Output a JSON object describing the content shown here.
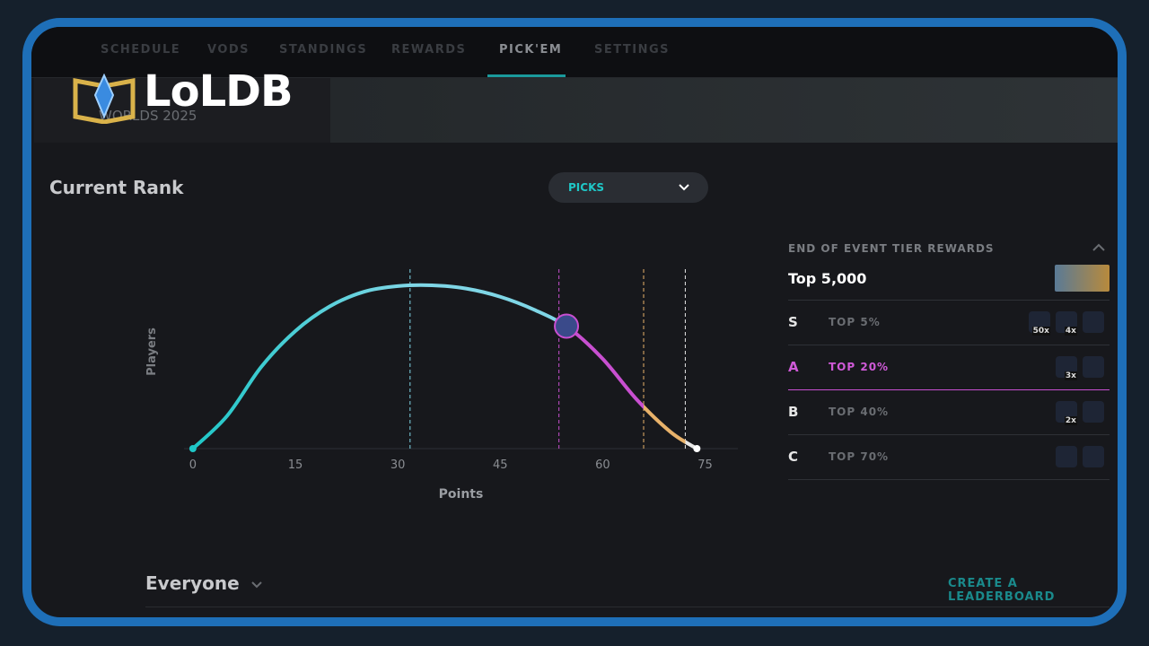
{
  "nav": {
    "items": [
      "SCHEDULE",
      "VODS",
      "STANDINGS",
      "REWARDS",
      "PICK'EM",
      "SETTINGS"
    ],
    "active": 4
  },
  "logo": "LoLDB",
  "event": "WORLDS 2025",
  "rank": {
    "title": "Current Rank",
    "dropdown": "PICKS"
  },
  "chart_data": {
    "type": "line",
    "x_label": "Points",
    "y_label": "Players",
    "x": [
      0,
      5,
      10,
      15,
      20,
      25,
      30,
      35,
      40,
      45,
      50,
      55,
      60,
      65,
      70,
      73.8
    ],
    "series": [
      {
        "color": "#1fc7c7",
        "values": [
          0,
          20,
          50,
          72,
          87,
          96,
          99.5,
          100,
          98,
          93,
          85,
          74,
          55,
          30,
          10,
          0
        ]
      }
    ],
    "xlim": [
      -1.3,
      79.8
    ],
    "ylim": [
      0,
      100
    ],
    "xticks": [
      0,
      15,
      30,
      45,
      60,
      75
    ],
    "thresholds": [
      {
        "x": 31.8,
        "color": "#7fd6e6"
      },
      {
        "x": 53.6,
        "color": "#c84fd0"
      },
      {
        "x": 66,
        "color": "#e8b26a"
      },
      {
        "x": 72.1,
        "color": "#e8e8e8"
      }
    ],
    "current": {
      "x": 54.7,
      "y": 75
    }
  },
  "rewards": {
    "title": "END OF EVENT TIER REWARDS",
    "top": "Top 5,000",
    "current_tier": 1,
    "tiers": [
      {
        "tier": "S",
        "label": "TOP 5%",
        "counts": [
          "50x",
          "4x"
        ]
      },
      {
        "tier": "A",
        "label": "TOP 20%",
        "counts": [
          "3x"
        ]
      },
      {
        "tier": "B",
        "label": "TOP 40%",
        "counts": [
          "2x"
        ]
      },
      {
        "tier": "C",
        "label": "TOP 70%",
        "counts": []
      }
    ]
  },
  "leaderboard": {
    "title": "Everyone",
    "action": "CREATE A LEADERBOARD"
  }
}
